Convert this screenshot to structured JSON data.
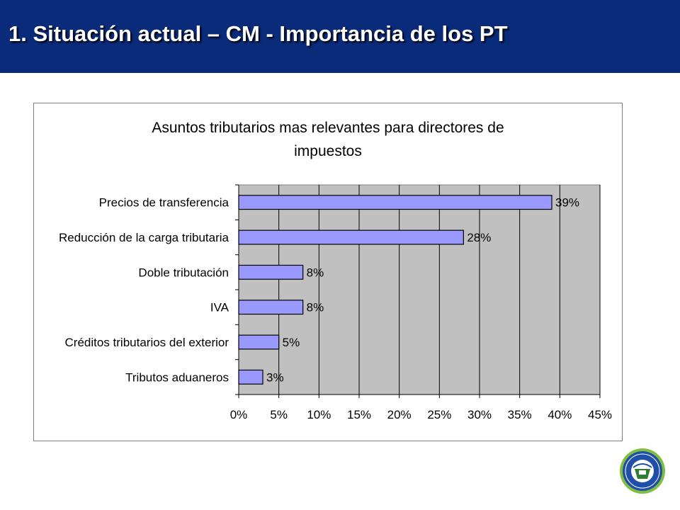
{
  "slide": {
    "title": "1. Situación actual – CM - Importancia de los PT"
  },
  "colors": {
    "header": "#0a2a7a",
    "plot_background": "#c0c0c0",
    "bar_fill": "#9999ff",
    "bar_stroke": "#000000"
  },
  "chart_data": {
    "type": "bar",
    "orientation": "horizontal",
    "title_lines": [
      "Asuntos tributarios mas relevantes para directores de",
      "impuestos"
    ],
    "categories": [
      "Precios de transferencia",
      "Reducción de la carga tributaria",
      "Doble tributación",
      "IVA",
      "Créditos tributarios del exterior",
      "Tributos aduaneros"
    ],
    "values": [
      39,
      28,
      8,
      8,
      5,
      3
    ],
    "data_labels": [
      "39%",
      "28%",
      "8%",
      "8%",
      "5%",
      "3%"
    ],
    "xlim": [
      0,
      45
    ],
    "xticks": [
      0,
      5,
      10,
      15,
      20,
      25,
      30,
      35,
      40,
      45
    ],
    "xtick_labels": [
      "0%",
      "5%",
      "10%",
      "15%",
      "20%",
      "25%",
      "30%",
      "35%",
      "40%",
      "45%"
    ],
    "grid": true,
    "legend": "none"
  }
}
